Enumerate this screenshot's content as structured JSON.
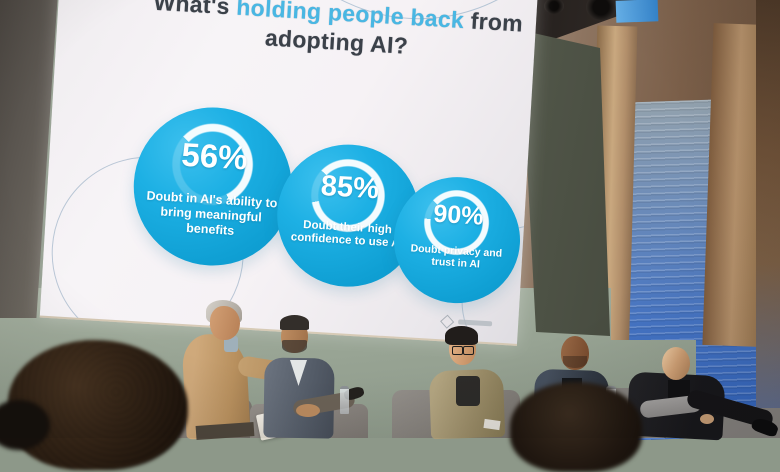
{
  "slide": {
    "title": {
      "prefix": "What's ",
      "highlight": "holding people back",
      "suffix": " from",
      "line2": "adopting AI?"
    },
    "stats": [
      {
        "pct": "56%",
        "value": 56,
        "caption": "Doubt in AI's ability to bring meaningful benefits"
      },
      {
        "pct": "85%",
        "value": 85,
        "caption": "Doubt their high confidence to use AI"
      },
      {
        "pct": "90%",
        "value": 90,
        "caption": "Doubt privacy and trust in AI"
      }
    ],
    "colors": {
      "accent": "#49b7e3",
      "title": "#3b4149",
      "bubble": "#18a8db"
    }
  },
  "chart_data": {
    "type": "pie",
    "title": "What's holding people back from adopting AI?",
    "unit": "%",
    "series": [
      {
        "name": "Doubt in AI's ability to bring meaningful benefits",
        "values": [
          56
        ]
      },
      {
        "name": "Doubt their high confidence to use AI",
        "values": [
          85
        ]
      },
      {
        "name": "Doubt privacy and trust in AI",
        "values": [
          90
        ]
      }
    ],
    "legend_position": "inside-circles",
    "grid": false
  }
}
